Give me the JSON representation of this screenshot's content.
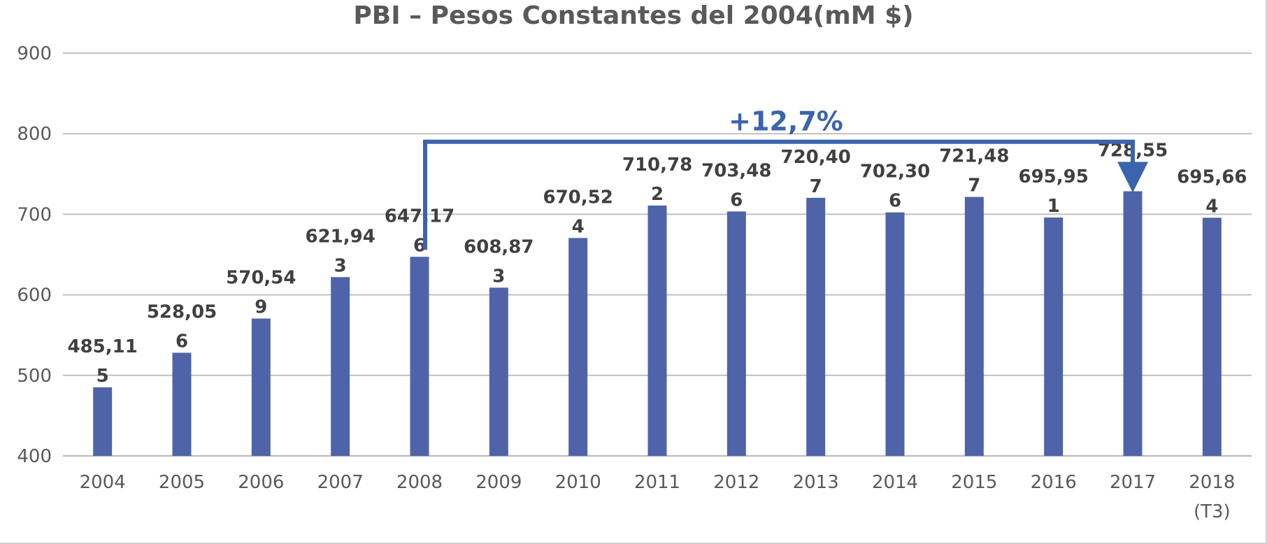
{
  "chart_data": {
    "type": "bar",
    "title": "PBI – Pesos Constantes del 2004(mM $)",
    "xlabel": "",
    "ylabel": "",
    "categories": [
      "2004",
      "2005",
      "2006",
      "2007",
      "2008",
      "2009",
      "2010",
      "2011",
      "2012",
      "2013",
      "2014",
      "2015",
      "2016",
      "2017",
      "2018"
    ],
    "category_sublabels": [
      "",
      "",
      "",
      "",
      "",
      "",
      "",
      "",
      "",
      "",
      "",
      "",
      "",
      "",
      "(T3)"
    ],
    "values": [
      485.115,
      528.056,
      570.549,
      621.943,
      647.176,
      608.873,
      670.524,
      710.782,
      703.486,
      720.407,
      702.306,
      721.487,
      695.951,
      728.55,
      695.664
    ],
    "data_labels": [
      [
        "485,11",
        "5"
      ],
      [
        "528,05",
        "6"
      ],
      [
        "570,54",
        "9"
      ],
      [
        "621,94",
        "3"
      ],
      [
        "647,17",
        "6"
      ],
      [
        "608,87",
        "3"
      ],
      [
        "670,52",
        "4"
      ],
      [
        "710,78",
        "2"
      ],
      [
        "703,48",
        "6"
      ],
      [
        "720,40",
        "7"
      ],
      [
        "702,30",
        "6"
      ],
      [
        "721,48",
        "7"
      ],
      [
        "695,95",
        "1"
      ],
      [
        "728,55",
        ""
      ],
      [
        "695,66",
        "4"
      ]
    ],
    "ylim": [
      400,
      900
    ],
    "yticks": [
      "400",
      "500",
      "600",
      "700",
      "800",
      "900"
    ],
    "grid": true,
    "colors": {
      "bar": "#4f64a8",
      "grid": "#bfbfbf",
      "annotation": "#3a64ad"
    },
    "annotation": {
      "text": "+12,7%",
      "from_category": "2008",
      "to_category": "2017"
    }
  }
}
